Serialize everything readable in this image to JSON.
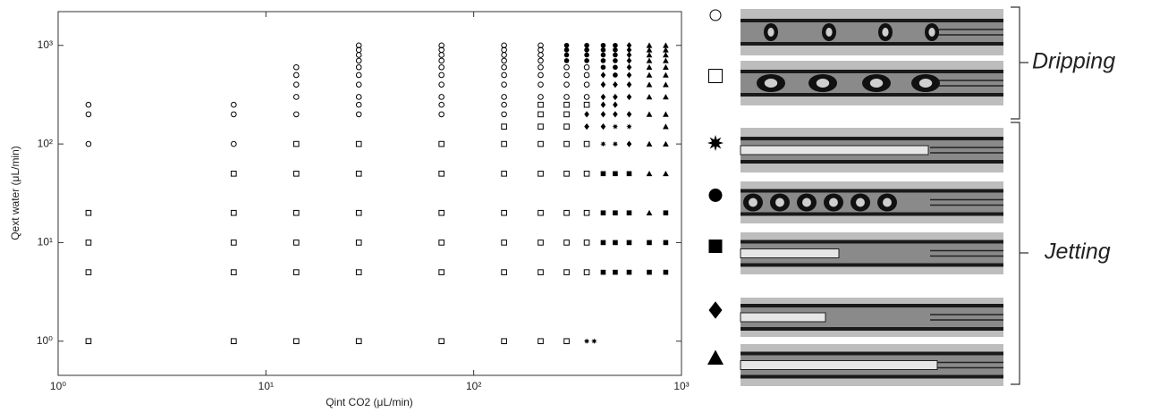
{
  "chart_data": {
    "type": "scatter",
    "xlabel": "Qint CO2 (μL/min)",
    "ylabel": "Qext water (μL/min)",
    "log_x": true,
    "log_y": true,
    "xlim": [
      1,
      1000
    ],
    "ylim": [
      0.45,
      2200
    ],
    "xticks": [
      {
        "value": 1,
        "label": "10⁰"
      },
      {
        "value": 10,
        "label": "10¹"
      },
      {
        "value": 100,
        "label": "10²"
      },
      {
        "value": 1000,
        "label": "10³"
      }
    ],
    "yticks": [
      {
        "value": 1,
        "label": "10⁰"
      },
      {
        "value": 10,
        "label": "10¹"
      },
      {
        "value": 100,
        "label": "10²"
      },
      {
        "value": 1000,
        "label": "10³"
      }
    ],
    "color": "#000000",
    "series": [
      {
        "marker": "open-circle",
        "x": [
          1.4,
          1.4,
          1.4,
          7,
          7,
          7,
          14,
          14,
          14,
          14,
          14,
          28,
          28,
          28,
          28,
          28,
          28,
          28,
          28,
          28,
          28,
          70,
          70,
          70,
          70,
          70,
          70,
          70,
          70,
          70,
          70,
          140,
          140,
          140,
          140,
          140,
          140,
          140,
          140,
          140,
          140,
          210,
          210,
          210,
          210,
          210,
          210,
          210,
          210,
          280,
          280,
          280,
          280,
          350,
          350,
          350,
          350
        ],
        "values": [
          100,
          200,
          250,
          100,
          200,
          250,
          200,
          300,
          400,
          500,
          600,
          200,
          250,
          300,
          400,
          500,
          600,
          700,
          800,
          900,
          1000,
          200,
          250,
          300,
          400,
          500,
          600,
          700,
          800,
          900,
          1000,
          200,
          250,
          300,
          400,
          500,
          600,
          700,
          800,
          900,
          1000,
          300,
          400,
          500,
          600,
          700,
          800,
          900,
          1000,
          300,
          400,
          500,
          600,
          300,
          400,
          500,
          600
        ]
      },
      {
        "marker": "open-square",
        "x": [
          1.4,
          1.4,
          1.4,
          1.4,
          7,
          7,
          7,
          7,
          7,
          14,
          14,
          14,
          14,
          14,
          14,
          28,
          28,
          28,
          28,
          28,
          28,
          70,
          70,
          70,
          70,
          70,
          70,
          140,
          140,
          140,
          140,
          140,
          140,
          140,
          210,
          210,
          210,
          210,
          210,
          210,
          210,
          210,
          210,
          280,
          280,
          280,
          280,
          280,
          280,
          280,
          280,
          280,
          350,
          350,
          350,
          350,
          350,
          350
        ],
        "values": [
          20,
          10,
          5,
          1,
          50,
          20,
          10,
          5,
          1,
          100,
          50,
          20,
          10,
          5,
          1,
          100,
          50,
          20,
          10,
          5,
          1,
          100,
          50,
          20,
          10,
          5,
          1,
          150,
          100,
          50,
          20,
          10,
          5,
          1,
          250,
          200,
          150,
          100,
          50,
          20,
          10,
          5,
          1,
          250,
          200,
          150,
          100,
          50,
          20,
          10,
          5,
          1,
          250,
          100,
          50,
          20,
          10,
          5
        ]
      },
      {
        "marker": "star",
        "x": [
          350,
          380,
          420,
          480,
          480,
          560
        ],
        "values": [
          1,
          1,
          100,
          100,
          150,
          150
        ]
      },
      {
        "marker": "filled-circle",
        "x": [
          280,
          280,
          280,
          280,
          350,
          350,
          350,
          350,
          420,
          420,
          420,
          420,
          420,
          480,
          480,
          480,
          480,
          480,
          480
        ],
        "values": [
          700,
          800,
          900,
          1000,
          700,
          800,
          900,
          1000,
          600,
          700,
          800,
          900,
          1000,
          500,
          600,
          700,
          800,
          900,
          1000
        ]
      },
      {
        "marker": "filled-square",
        "x": [
          420,
          420,
          420,
          420,
          480,
          480,
          480,
          480,
          560,
          560,
          560,
          560,
          700,
          700,
          840,
          840,
          840
        ],
        "values": [
          50,
          20,
          10,
          5,
          50,
          20,
          10,
          5,
          50,
          20,
          10,
          5,
          10,
          5,
          20,
          10,
          5
        ]
      },
      {
        "marker": "diamond",
        "x": [
          350,
          350,
          420,
          420,
          420,
          420,
          420,
          420,
          480,
          480,
          480,
          480,
          560,
          560,
          560,
          560,
          560,
          560,
          560,
          560,
          560,
          560
        ],
        "values": [
          150,
          200,
          150,
          200,
          250,
          300,
          400,
          500,
          200,
          250,
          300,
          400,
          100,
          200,
          300,
          400,
          500,
          600,
          700,
          800,
          900,
          1000
        ]
      },
      {
        "marker": "triangle",
        "x": [
          700,
          700,
          700,
          700,
          700,
          700,
          700,
          700,
          700,
          700,
          700,
          700,
          840,
          840,
          840,
          840,
          840,
          840,
          840,
          840,
          840,
          840,
          840,
          840
        ],
        "values": [
          20,
          50,
          100,
          200,
          300,
          400,
          500,
          600,
          700,
          800,
          900,
          1000,
          50,
          100,
          150,
          200,
          300,
          400,
          500,
          600,
          700,
          800,
          900,
          1000
        ]
      }
    ]
  },
  "regimes": {
    "dripping": "Dripping",
    "jetting": "Jetting"
  }
}
